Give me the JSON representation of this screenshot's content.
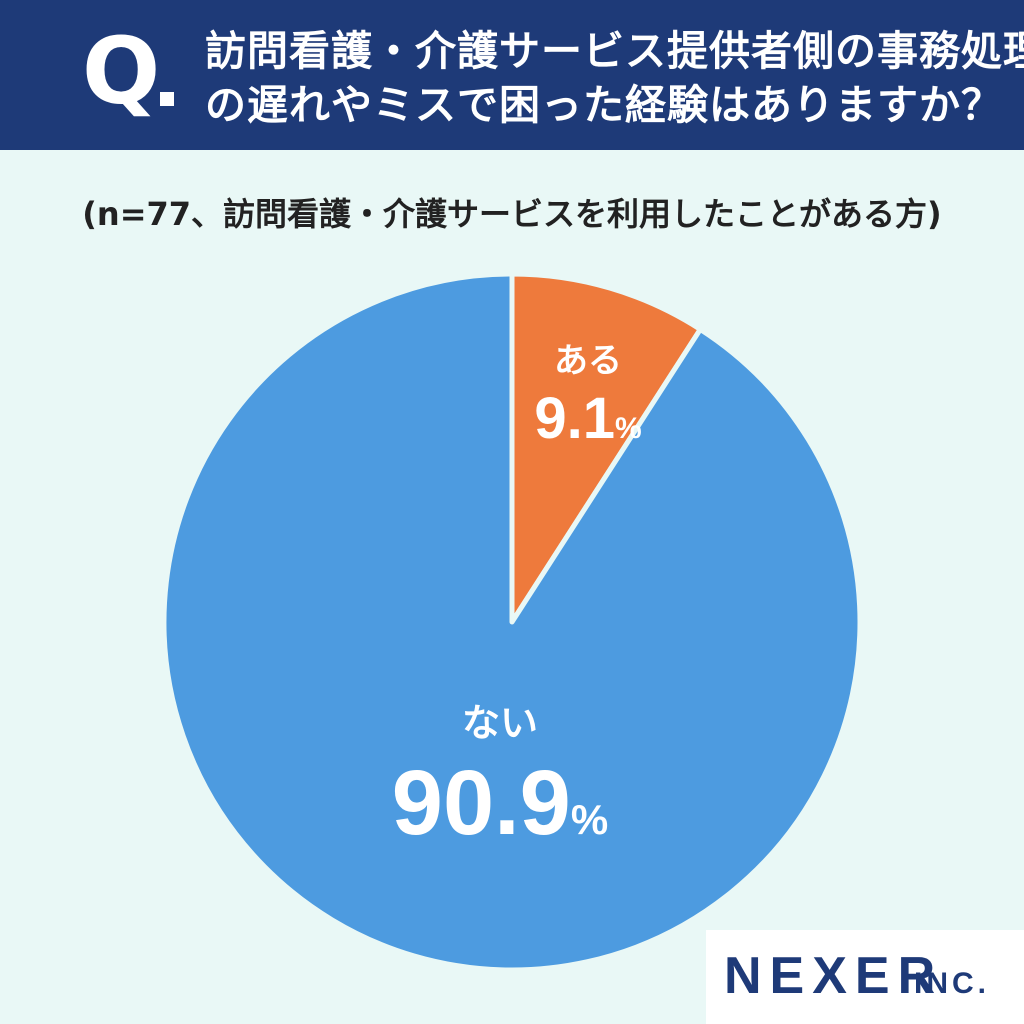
{
  "question": {
    "mark": "Q",
    "line1": "訪問看護・介護サービス提供者側の事務処理",
    "line2": "の遅れやミスで困った経験はありますか？"
  },
  "subtitle": "(n=77、訪問看護・介護サービスを利用したことがある方)",
  "chart_data": {
    "type": "pie",
    "n": 77,
    "slices": [
      {
        "label": "ある",
        "value": 9.1,
        "display": "9.1",
        "unit": "%",
        "color": "#ee7a3c"
      },
      {
        "label": "ない",
        "value": 90.9,
        "display": "90.9",
        "unit": "%",
        "color": "#4d9be0"
      }
    ],
    "start_angle": "12 o'clock",
    "direction": "clockwise"
  },
  "logo": {
    "main": "NEXER",
    "sub": "INC."
  },
  "colors": {
    "header_bg": "#1e3a78",
    "page_bg": "#e9f8f6",
    "slice_border": "#e9f8f6",
    "label_text": "#ffffff"
  }
}
